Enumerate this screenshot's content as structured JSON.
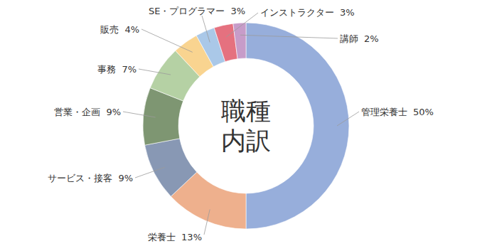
{
  "chart_data": {
    "type": "pie",
    "title": "職種内訳",
    "categories": [
      "管理栄養士",
      "栄養士",
      "サービス・接客",
      "営業・企画",
      "事務",
      "販売",
      "SE・プログラマー",
      "インストラクター",
      "講師"
    ],
    "values": [
      50,
      13,
      9,
      9,
      7,
      4,
      3,
      3,
      2
    ],
    "value_labels": [
      "50%",
      "13%",
      "9%",
      "9%",
      "7%",
      "4%",
      "3%",
      "3%",
      "2%"
    ],
    "colors": [
      "#97aedb",
      "#eeb08d",
      "#8898b4",
      "#7e9672",
      "#b5d1a4",
      "#f9d490",
      "#aac8e8",
      "#e5717f",
      "#c79cc9"
    ],
    "data_labels": true
  }
}
